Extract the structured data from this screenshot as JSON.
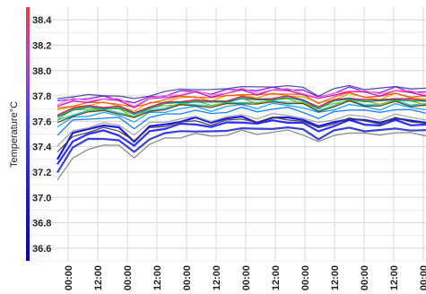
{
  "chart_data": {
    "type": "line",
    "title": "",
    "xlabel": "",
    "ylabel": "Temperature°C",
    "ylim": [
      36.5,
      38.5
    ],
    "yticks": [
      "38.4",
      "38.2",
      "38.0",
      "37.8",
      "37.6",
      "37.4",
      "37.2",
      "37.0",
      "36.8",
      "36.6"
    ],
    "xticks": [
      "00:00",
      "12:00",
      "00:00",
      "12:00",
      "00:00",
      "12:00",
      "00:00",
      "12:00",
      "00:00",
      "12:00",
      "00:00",
      "12:00",
      "00:00"
    ],
    "grid": true,
    "legend": "none",
    "series_colors": [
      "#0000ee",
      "#1a1aff",
      "#2030d0",
      "#0070ff",
      "#00a0ff",
      "#00c8c8",
      "#20b040",
      "#80c000",
      "#e0a000",
      "#ff5000",
      "#e00060",
      "#c000c0",
      "#8000ff",
      "#4040a0",
      "#808080",
      "#a0a0a0",
      "#603000",
      "#008080",
      "#ff80c0",
      "#404040"
    ],
    "series": [
      {
        "values": [
          37.3,
          37.5,
          37.55,
          37.56,
          37.55,
          37.45,
          37.55,
          37.58,
          37.6,
          37.62,
          37.6,
          37.62,
          37.63,
          37.6,
          37.62,
          37.63,
          37.62,
          37.55,
          37.6,
          37.62,
          37.6,
          37.6,
          37.62,
          37.6,
          37.6
        ]
      },
      {
        "values": [
          37.25,
          37.45,
          37.5,
          37.52,
          37.5,
          37.4,
          37.52,
          37.55,
          37.57,
          37.58,
          37.56,
          37.58,
          37.6,
          37.58,
          37.6,
          37.6,
          37.58,
          37.52,
          37.57,
          37.6,
          37.58,
          37.57,
          37.6,
          37.58,
          37.57
        ]
      },
      {
        "values": [
          37.2,
          37.4,
          37.45,
          37.47,
          37.45,
          37.35,
          37.47,
          37.5,
          37.52,
          37.53,
          37.51,
          37.53,
          37.55,
          37.53,
          37.55,
          37.55,
          37.53,
          37.47,
          37.52,
          37.55,
          37.53,
          37.52,
          37.55,
          37.53,
          37.52
        ]
      },
      {
        "values": [
          37.5,
          37.6,
          37.62,
          37.63,
          37.62,
          37.55,
          37.63,
          37.65,
          37.67,
          37.68,
          37.66,
          37.68,
          37.7,
          37.68,
          37.7,
          37.7,
          37.68,
          37.62,
          37.67,
          37.7,
          37.68,
          37.67,
          37.7,
          37.68,
          37.67
        ]
      },
      {
        "values": [
          37.55,
          37.63,
          37.65,
          37.66,
          37.65,
          37.6,
          37.66,
          37.68,
          37.7,
          37.71,
          37.69,
          37.71,
          37.73,
          37.71,
          37.73,
          37.73,
          37.71,
          37.66,
          37.7,
          37.73,
          37.71,
          37.7,
          37.73,
          37.71,
          37.7
        ]
      },
      {
        "values": [
          37.6,
          37.66,
          37.68,
          37.69,
          37.68,
          37.63,
          37.69,
          37.71,
          37.73,
          37.74,
          37.72,
          37.74,
          37.76,
          37.74,
          37.76,
          37.76,
          37.74,
          37.69,
          37.73,
          37.76,
          37.74,
          37.73,
          37.76,
          37.74,
          37.73
        ]
      },
      {
        "values": [
          37.65,
          37.7,
          37.71,
          37.72,
          37.71,
          37.66,
          37.72,
          37.74,
          37.76,
          37.77,
          37.75,
          37.77,
          37.79,
          37.77,
          37.79,
          37.79,
          37.77,
          37.72,
          37.76,
          37.79,
          37.77,
          37.76,
          37.79,
          37.77,
          37.76
        ]
      },
      {
        "values": [
          37.62,
          37.68,
          37.7,
          37.7,
          37.69,
          37.64,
          37.7,
          37.72,
          37.74,
          37.75,
          37.73,
          37.75,
          37.77,
          37.75,
          37.77,
          37.77,
          37.75,
          37.7,
          37.74,
          37.77,
          37.75,
          37.74,
          37.77,
          37.75,
          37.74
        ]
      },
      {
        "values": [
          37.68,
          37.72,
          37.73,
          37.74,
          37.73,
          37.68,
          37.74,
          37.76,
          37.78,
          37.79,
          37.77,
          37.79,
          37.81,
          37.79,
          37.81,
          37.81,
          37.79,
          37.74,
          37.78,
          37.81,
          37.79,
          37.78,
          37.81,
          37.79,
          37.78
        ]
      },
      {
        "values": [
          37.7,
          37.73,
          37.74,
          37.75,
          37.74,
          37.7,
          37.75,
          37.77,
          37.79,
          37.8,
          37.78,
          37.8,
          37.82,
          37.8,
          37.82,
          37.82,
          37.8,
          37.75,
          37.79,
          37.82,
          37.8,
          37.79,
          37.82,
          37.8,
          37.79
        ]
      },
      {
        "values": [
          37.66,
          37.7,
          37.72,
          37.72,
          37.71,
          37.67,
          37.72,
          37.74,
          37.76,
          37.77,
          37.75,
          37.77,
          37.79,
          37.77,
          37.79,
          37.79,
          37.77,
          37.72,
          37.76,
          37.79,
          37.77,
          37.76,
          37.79,
          37.77,
          37.76
        ]
      },
      {
        "values": [
          37.72,
          37.75,
          37.76,
          37.77,
          37.76,
          37.72,
          37.77,
          37.79,
          37.81,
          37.82,
          37.8,
          37.82,
          37.84,
          37.82,
          37.84,
          37.84,
          37.82,
          37.77,
          37.81,
          37.84,
          37.82,
          37.81,
          37.84,
          37.82,
          37.81
        ]
      },
      {
        "values": [
          37.75,
          37.78,
          37.78,
          37.79,
          37.78,
          37.74,
          37.79,
          37.81,
          37.83,
          37.84,
          37.82,
          37.84,
          37.86,
          37.84,
          37.86,
          37.86,
          37.84,
          37.79,
          37.83,
          37.86,
          37.84,
          37.83,
          37.86,
          37.84,
          37.83
        ]
      },
      {
        "values": [
          37.78,
          37.8,
          37.8,
          37.81,
          37.8,
          37.77,
          37.81,
          37.83,
          37.85,
          37.86,
          37.84,
          37.86,
          37.88,
          37.86,
          37.88,
          37.88,
          37.86,
          37.81,
          37.85,
          37.88,
          37.86,
          37.85,
          37.88,
          37.86,
          37.85
        ]
      },
      {
        "values": [
          37.15,
          37.3,
          37.38,
          37.42,
          37.4,
          37.32,
          37.42,
          37.46,
          37.48,
          37.5,
          37.48,
          37.5,
          37.52,
          37.5,
          37.52,
          37.52,
          37.5,
          37.44,
          37.48,
          37.52,
          37.5,
          37.49,
          37.52,
          37.5,
          37.49
        ]
      },
      {
        "values": [
          37.4,
          37.52,
          37.56,
          37.58,
          37.57,
          37.5,
          37.58,
          37.6,
          37.62,
          37.63,
          37.61,
          37.63,
          37.65,
          37.63,
          37.65,
          37.65,
          37.63,
          37.58,
          37.62,
          37.65,
          37.63,
          37.62,
          37.65,
          37.63,
          37.62
        ]
      },
      {
        "values": [
          37.58,
          37.65,
          37.67,
          37.68,
          37.67,
          37.62,
          37.68,
          37.7,
          37.72,
          37.73,
          37.71,
          37.73,
          37.75,
          37.73,
          37.75,
          37.75,
          37.73,
          37.68,
          37.72,
          37.75,
          37.73,
          37.72,
          37.75,
          37.73,
          37.72
        ]
      },
      {
        "values": [
          37.64,
          37.69,
          37.7,
          37.71,
          37.7,
          37.65,
          37.71,
          37.73,
          37.75,
          37.76,
          37.74,
          37.76,
          37.78,
          37.76,
          37.78,
          37.78,
          37.76,
          37.71,
          37.75,
          37.78,
          37.76,
          37.75,
          37.78,
          37.76,
          37.75
        ]
      },
      {
        "values": [
          37.74,
          37.77,
          37.77,
          37.78,
          37.77,
          37.73,
          37.78,
          37.8,
          37.82,
          37.83,
          37.81,
          37.83,
          37.85,
          37.83,
          37.85,
          37.85,
          37.83,
          37.78,
          37.82,
          37.85,
          37.83,
          37.82,
          37.85,
          37.83,
          37.82
        ]
      },
      {
        "values": [
          37.35,
          37.48,
          37.52,
          37.54,
          37.53,
          37.45,
          37.54,
          37.57,
          37.59,
          37.6,
          37.58,
          37.6,
          37.62,
          37.6,
          37.62,
          37.62,
          37.6,
          37.54,
          37.59,
          37.62,
          37.6,
          37.59,
          37.62,
          37.6,
          37.59
        ]
      }
    ]
  }
}
